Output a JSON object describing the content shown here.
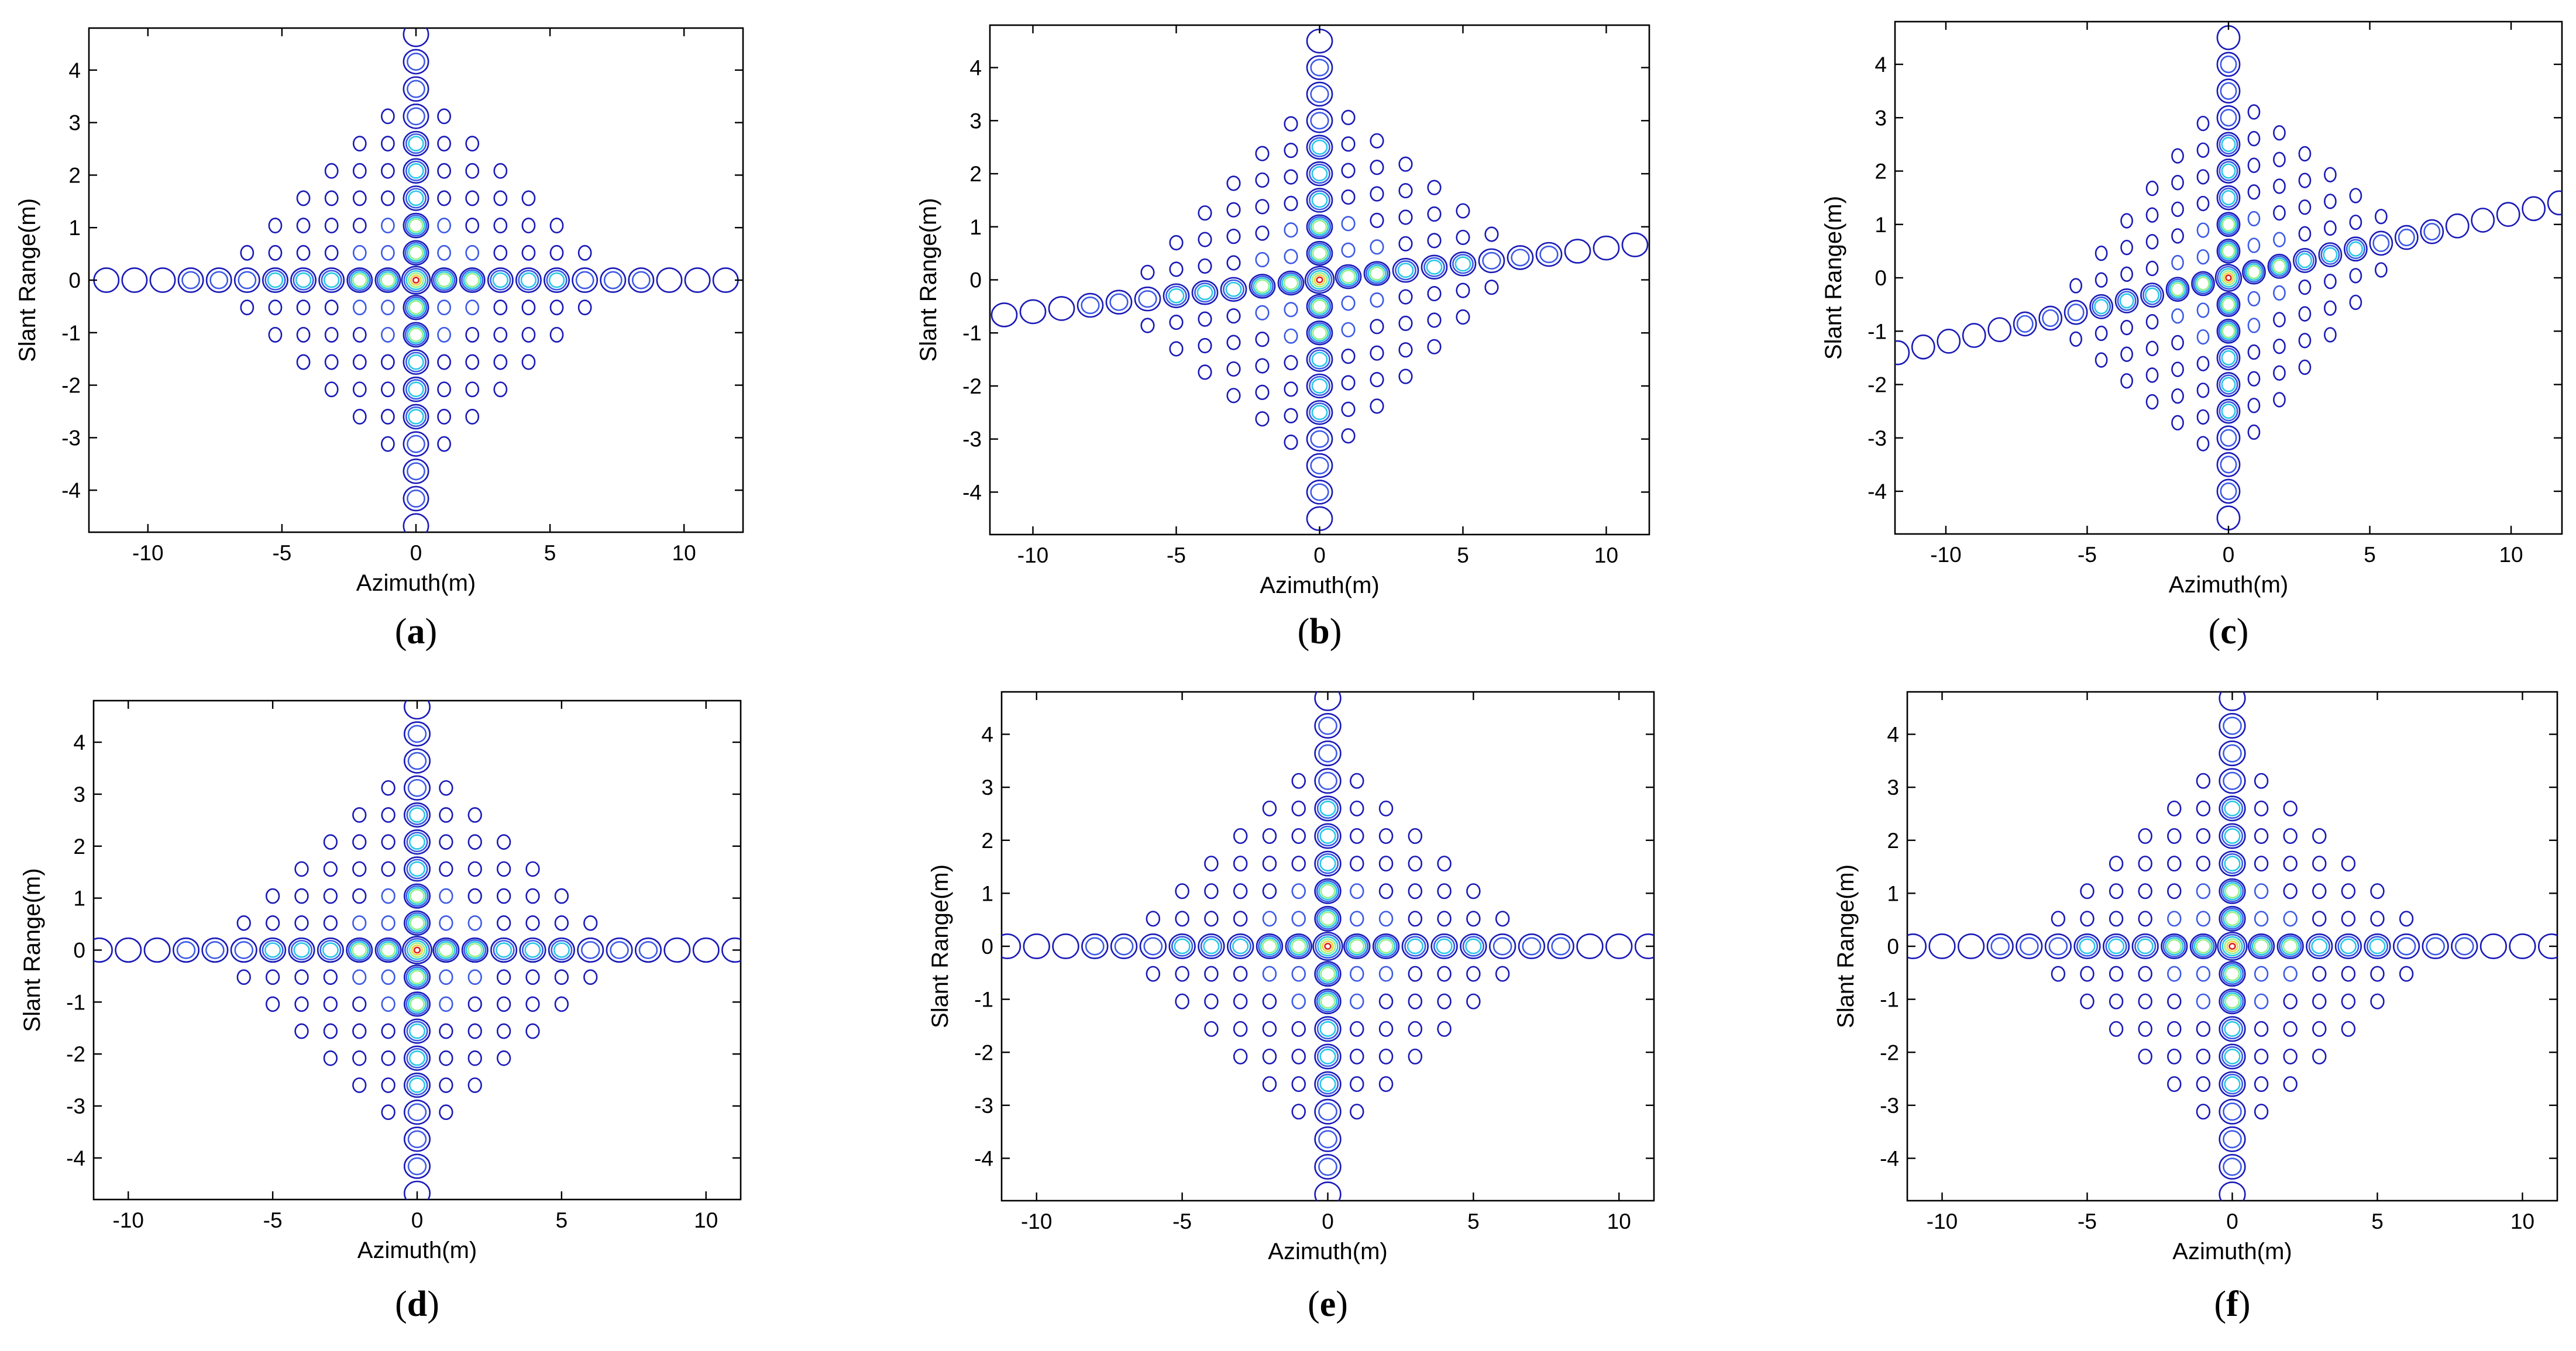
{
  "figure": {
    "contour_colors": [
      "#1a1ab8",
      "#3c5ae6",
      "#28c8e6",
      "#96f08c",
      "#f0d23c",
      "#e02020"
    ]
  },
  "chart_data": [
    {
      "type": "contour",
      "panel": "a",
      "caption": {
        "open": "(",
        "letter": "a",
        "close": ")"
      },
      "xlabel": "Azimuth(m)",
      "ylabel": "Slant Range(m)",
      "xlim": [
        -12.2,
        12.2
      ],
      "ylim": [
        -4.8,
        4.8
      ],
      "xticks": [
        -10,
        -5,
        0,
        5,
        10
      ],
      "yticks": [
        -4,
        -3,
        -2,
        -1,
        0,
        1,
        2,
        3,
        4
      ],
      "peak": {
        "azimuth": 0,
        "slant_range": 0
      },
      "sidelobe_spacing": {
        "azimuth": 1.05,
        "slant_range": 0.52
      },
      "skew": 0,
      "extent": {
        "azimuth": 12,
        "slant_range": 4.7
      }
    },
    {
      "type": "contour",
      "panel": "b",
      "caption": {
        "open": "(",
        "letter": "b",
        "close": ")"
      },
      "xlabel": "Azimuth(m)",
      "ylabel": "Slant Range(m)",
      "xlim": [
        -11.5,
        11.5
      ],
      "ylim": [
        -4.8,
        4.8
      ],
      "xticks": [
        -10,
        -5,
        0,
        5,
        10
      ],
      "yticks": [
        -4,
        -3,
        -2,
        -1,
        0,
        1,
        2,
        3,
        4
      ],
      "peak": {
        "azimuth": 0,
        "slant_range": 0
      },
      "sidelobe_spacing": {
        "azimuth": 1.0,
        "slant_range": 0.5
      },
      "skew": 0.06,
      "extent": {
        "azimuth": 11.5,
        "slant_range": 4.7
      }
    },
    {
      "type": "contour",
      "panel": "c",
      "caption": {
        "open": "(",
        "letter": "c",
        "close": ")"
      },
      "xlabel": "Azimuth(m)",
      "ylabel": "Slant Range(m)",
      "xlim": [
        -11.8,
        11.8
      ],
      "ylim": [
        -4.8,
        4.8
      ],
      "xticks": [
        -10,
        -5,
        0,
        5,
        10
      ],
      "yticks": [
        -4,
        -3,
        -2,
        -1,
        0,
        1,
        2,
        3,
        4
      ],
      "peak": {
        "azimuth": 0,
        "slant_range": 0
      },
      "sidelobe_spacing": {
        "azimuth": 0.9,
        "slant_range": 0.5
      },
      "skew": 0.12,
      "extent": {
        "azimuth": 11.8,
        "slant_range": 4.7
      }
    },
    {
      "type": "contour",
      "panel": "d",
      "caption": {
        "open": "(",
        "letter": "d",
        "close": ")"
      },
      "xlabel": "Azimuth(m)",
      "ylabel": "Slant  Range(m)",
      "xlim": [
        -11.2,
        11.2
      ],
      "ylim": [
        -4.8,
        4.8
      ],
      "xticks": [
        -10,
        -5,
        0,
        5,
        10
      ],
      "yticks": [
        -4,
        -3,
        -2,
        -1,
        0,
        1,
        2,
        3,
        4
      ],
      "peak": {
        "azimuth": 0,
        "slant_range": 0
      },
      "sidelobe_spacing": {
        "azimuth": 1.0,
        "slant_range": 0.52
      },
      "skew": 0,
      "extent": {
        "azimuth": 11,
        "slant_range": 4.7
      }
    },
    {
      "type": "contour",
      "panel": "e",
      "caption": {
        "open": "(",
        "letter": "e",
        "close": ")"
      },
      "xlabel": "Azimuth(m)",
      "ylabel": "Slant  Range(m)",
      "xlim": [
        -11.2,
        11.2
      ],
      "ylim": [
        -4.8,
        4.8
      ],
      "xticks": [
        -10,
        -5,
        0,
        5,
        10
      ],
      "yticks": [
        -4,
        -3,
        -2,
        -1,
        0,
        1,
        2,
        3,
        4
      ],
      "peak": {
        "azimuth": 0,
        "slant_range": 0
      },
      "sidelobe_spacing": {
        "azimuth": 1.0,
        "slant_range": 0.52
      },
      "skew": 0,
      "extent": {
        "azimuth": 11,
        "slant_range": 4.7
      }
    },
    {
      "type": "contour",
      "panel": "f",
      "caption": {
        "open": "(",
        "letter": "f",
        "close": ")"
      },
      "xlabel": "Azimuth(m)",
      "ylabel": "Slant Range(m)",
      "xlim": [
        -11.2,
        11.2
      ],
      "ylim": [
        -4.8,
        4.8
      ],
      "xticks": [
        -10,
        -5,
        0,
        5,
        10
      ],
      "yticks": [
        -4,
        -3,
        -2,
        -1,
        0,
        1,
        2,
        3,
        4
      ],
      "peak": {
        "azimuth": 0,
        "slant_range": 0
      },
      "sidelobe_spacing": {
        "azimuth": 1.0,
        "slant_range": 0.52
      },
      "skew": 0,
      "extent": {
        "azimuth": 11,
        "slant_range": 4.7
      }
    }
  ]
}
